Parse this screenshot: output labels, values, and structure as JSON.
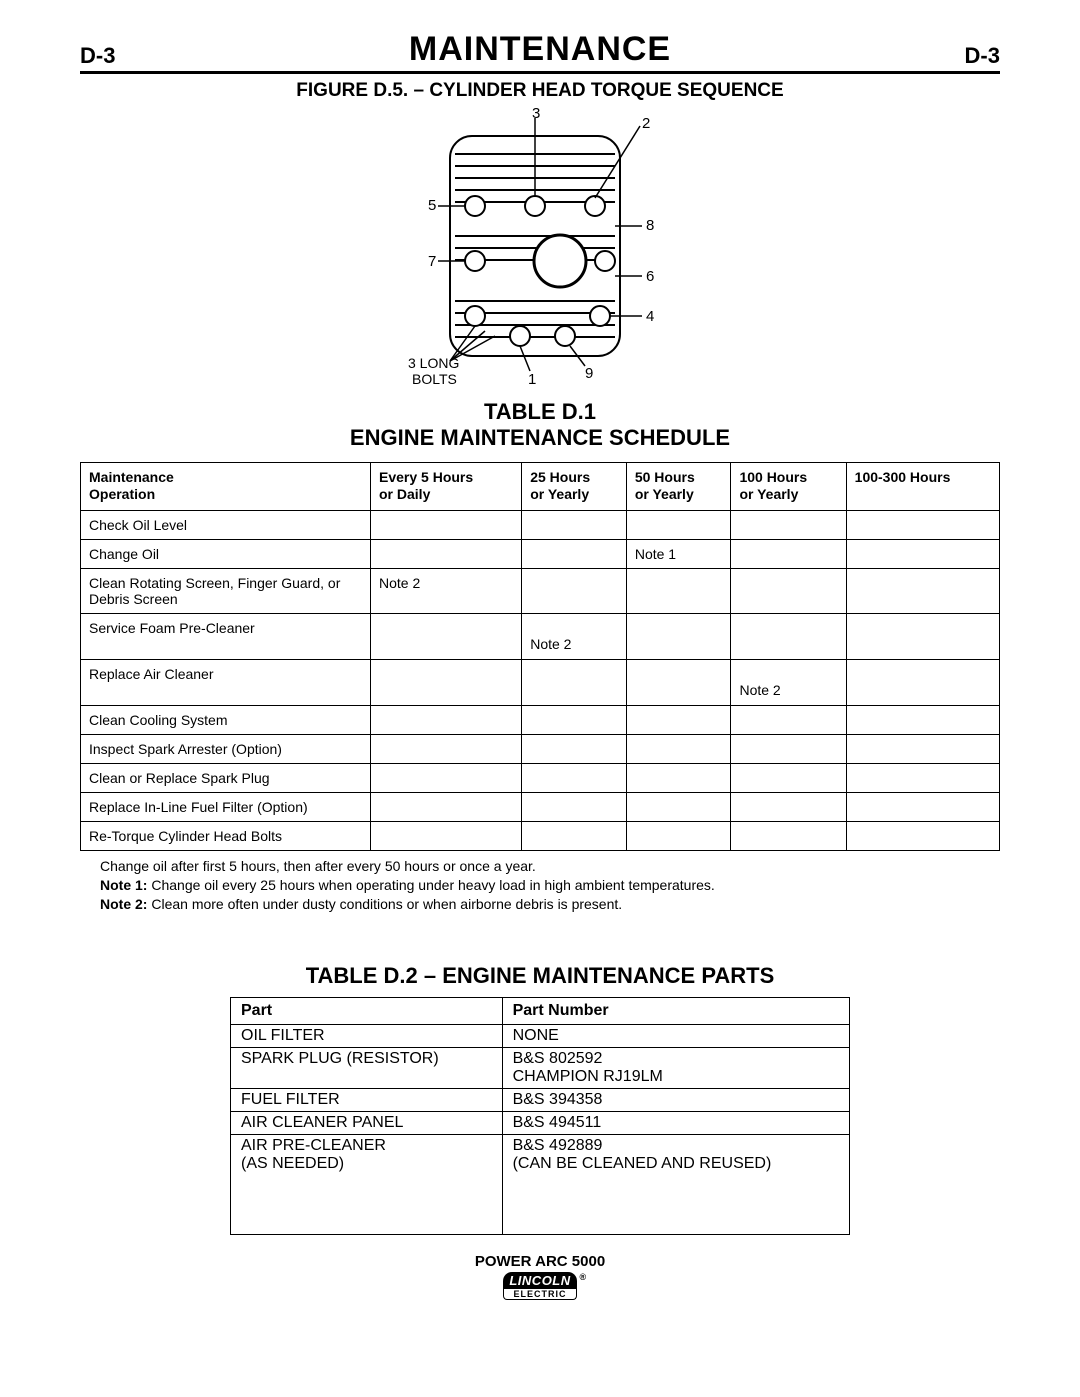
{
  "header": {
    "page_code_left": "D-3",
    "title": "MAINTENANCE",
    "page_code_right": "D-3"
  },
  "figure": {
    "title": "FIGURE D.5. – CYLINDER HEAD TORQUE SEQUENCE",
    "labels": [
      "1",
      "2",
      "3",
      "4",
      "5",
      "6",
      "7",
      "8",
      "9"
    ],
    "note": "3 LONG\nBOLTS"
  },
  "table_d1": {
    "title_line1": "TABLE D.1",
    "title_line2": "ENGINE MAINTENANCE SCHEDULE",
    "columns": [
      "Maintenance\nOperation",
      "Every 5 Hours\nor Daily",
      "25 Hours\nor Yearly",
      "50 Hours\nor Yearly",
      "100 Hours\nor Yearly",
      "100-300 Hours"
    ],
    "rows": [
      {
        "op": "Check Oil Level",
        "c": [
          "",
          "",
          "",
          "",
          ""
        ]
      },
      {
        "op": "Change Oil",
        "c": [
          "",
          "",
          "Note 1",
          "",
          ""
        ]
      },
      {
        "op": "Clean Rotating Screen, Finger Guard, or Debris Screen",
        "c": [
          "Note 2",
          "",
          "",
          "",
          ""
        ]
      },
      {
        "op": "Service Foam Pre-Cleaner",
        "c": [
          "",
          "Note 2",
          "",
          "",
          ""
        ]
      },
      {
        "op": "Replace Air Cleaner",
        "c": [
          "",
          "",
          "",
          "Note 2",
          ""
        ]
      },
      {
        "op": "Clean Cooling System",
        "c": [
          "",
          "",
          "",
          "",
          ""
        ]
      },
      {
        "op": "Inspect Spark Arrester (Option)",
        "c": [
          "",
          "",
          "",
          "",
          ""
        ]
      },
      {
        "op": "Clean or Replace Spark Plug",
        "c": [
          "",
          "",
          "",
          "",
          ""
        ]
      },
      {
        "op": "Replace In-Line Fuel Filter (Option)",
        "c": [
          "",
          "",
          "",
          "",
          ""
        ]
      },
      {
        "op": "Re-Torque Cylinder Head Bolts",
        "c": [
          "",
          "",
          "",
          "",
          ""
        ]
      }
    ],
    "notes": {
      "line0": "Change oil after first 5 hours, then after every 50 hours or once a year.",
      "n1_label": "Note 1:",
      "n1_text": "Change oil every 25 hours when operating under heavy load in high ambient temperatures.",
      "n2_label": "Note 2:",
      "n2_text": "Clean more often under dusty conditions or when airborne debris is present."
    },
    "tall_rows": [
      3,
      4
    ]
  },
  "table_d2": {
    "title": "TABLE D.2 – ENGINE MAINTENANCE PARTS",
    "columns": [
      "Part",
      "Part Number"
    ],
    "rows": [
      {
        "part": "OIL FILTER",
        "num": "NONE"
      },
      {
        "part": "SPARK PLUG (RESISTOR)",
        "num": "B&S 802592\nCHAMPION RJ19LM"
      },
      {
        "part": "FUEL FILTER",
        "num": "B&S 394358"
      },
      {
        "part": "AIR CLEANER PANEL",
        "num": "B&S 494511"
      },
      {
        "part": "AIR PRE-CLEANER\n(AS NEEDED)",
        "num": "B&S 492889\n(CAN BE CLEANED AND REUSED)",
        "tall": true
      }
    ]
  },
  "footer": {
    "model": "POWER ARC 5000",
    "brand_top": "LINCOLN",
    "brand_bottom": "ELECTRIC",
    "reg": "®"
  },
  "style": {
    "text_color": "#000000",
    "bg_color": "#ffffff",
    "border_color": "#000000",
    "font_family": "Arial"
  }
}
